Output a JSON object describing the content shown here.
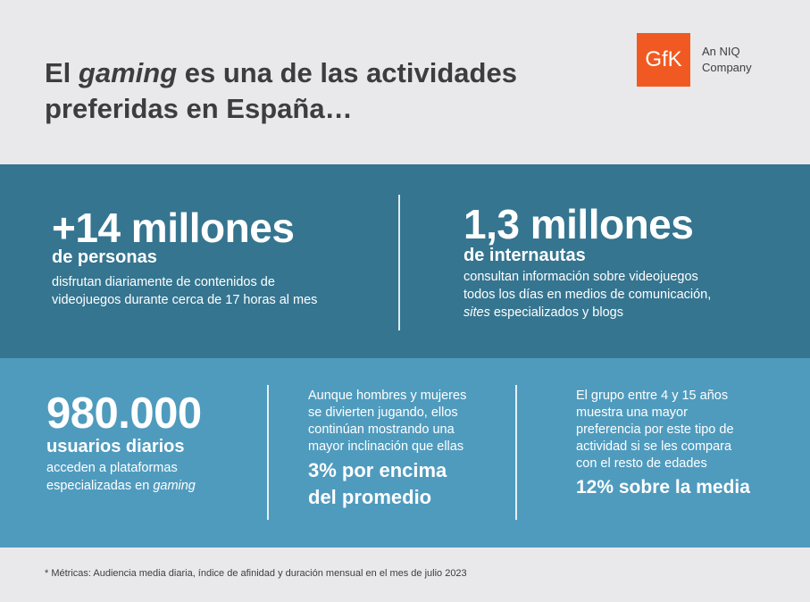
{
  "header": {
    "title_part1": "El ",
    "title_em": "gaming",
    "title_part2": " es una de las actividades preferidas en España…",
    "logo_text": "GfK",
    "logo_sub_line1": "An NIQ",
    "logo_sub_line2": "Company"
  },
  "stats": {
    "s1": {
      "big": "+14 millones",
      "sub": "de personas",
      "desc_line1": "disfrutan diariamente de contenidos de",
      "desc_line2": "videojuegos durante cerca de 17 horas al mes"
    },
    "s2": {
      "big": "1,3 millones",
      "sub": "de internautas",
      "desc_line1": "consultan información sobre videojuegos",
      "desc_line2": "todos los días en medios de comunicación,",
      "desc_em": "sites",
      "desc_line3_rest": " especializados y blogs"
    },
    "s3": {
      "big": "980.000",
      "sub": "usuarios diarios",
      "desc_line1": "acceden a plataformas",
      "desc_line2_pre": "especializadas en ",
      "desc_em": "gaming"
    },
    "s4": {
      "desc_line1": "Aunque hombres y mujeres",
      "desc_line2": "se divierten jugando, ellos",
      "desc_line3": "continúan mostrando una",
      "desc_line4": "mayor inclinación que ellas",
      "highlight_line1": "3% por encima",
      "highlight_line2": "del promedio"
    },
    "s5": {
      "desc_line1": "El grupo entre 4 y 15 años",
      "desc_line2": "muestra una mayor",
      "desc_line3": "preferencia por este tipo de",
      "desc_line4": "actividad si se les compara",
      "desc_line5": "con el resto de edades",
      "highlight": "12% sobre la media"
    }
  },
  "footer": {
    "note": "* Métricas: Audiencia media diaria, índice de afinidad y duración mensual en el mes de julio 2023"
  },
  "colors": {
    "background": "#e9e9eb",
    "band_dark": "#357590",
    "band_light": "#4f9bbe",
    "brand_orange": "#f05a22"
  }
}
